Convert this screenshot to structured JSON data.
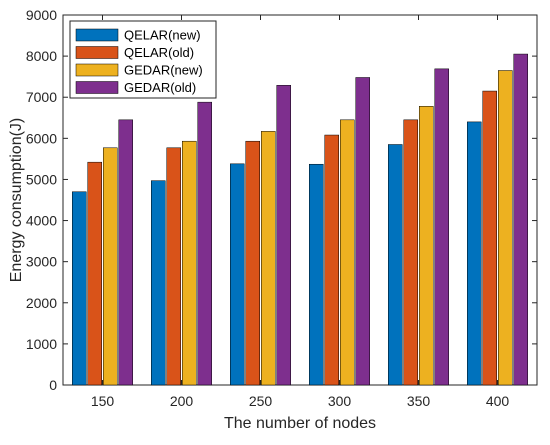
{
  "chart_data": {
    "type": "bar",
    "xlabel": "The number of nodes",
    "ylabel": "Energy consumption(J)",
    "categories": [
      "150",
      "200",
      "250",
      "300",
      "350",
      "400"
    ],
    "ylim": [
      0,
      9000
    ],
    "yticks": [
      0,
      1000,
      2000,
      3000,
      4000,
      5000,
      6000,
      7000,
      8000,
      9000
    ],
    "grid": false,
    "legend_position": "top-left",
    "series": [
      {
        "name": "QELAR(new)",
        "color": "#0072BD",
        "values": [
          4700,
          4970,
          5380,
          5370,
          5850,
          6400
        ]
      },
      {
        "name": "QELAR(old)",
        "color": "#D95319",
        "values": [
          5420,
          5770,
          5930,
          6080,
          6450,
          7150
        ]
      },
      {
        "name": "GEDAR(new)",
        "color": "#EDB120",
        "values": [
          5770,
          5930,
          6170,
          6450,
          6780,
          7650
        ]
      },
      {
        "name": "GEDAR(old)",
        "color": "#7E2F8E",
        "values": [
          6450,
          6880,
          7290,
          7480,
          7690,
          8050
        ]
      }
    ]
  }
}
